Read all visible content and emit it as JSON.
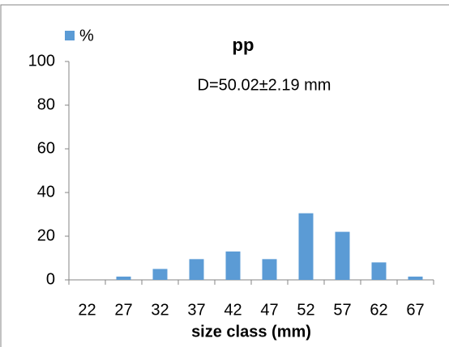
{
  "chart_data": {
    "type": "bar",
    "title": "pp",
    "annotation": "D=50.02±2.19 mm",
    "x_label": "size class (mm)",
    "categories": [
      "22",
      "27",
      "32",
      "37",
      "42",
      "47",
      "52",
      "57",
      "62",
      "67"
    ],
    "series": [
      {
        "name": "%",
        "color": "#5b9bd5",
        "values": [
          0,
          1.5,
          5,
          9.5,
          13,
          9.5,
          30.5,
          22,
          8,
          1.5
        ]
      }
    ],
    "ylim": [
      0,
      100
    ],
    "yticks": [
      0,
      20,
      40,
      60,
      80,
      100
    ],
    "grid": false,
    "legend": "top-left"
  }
}
